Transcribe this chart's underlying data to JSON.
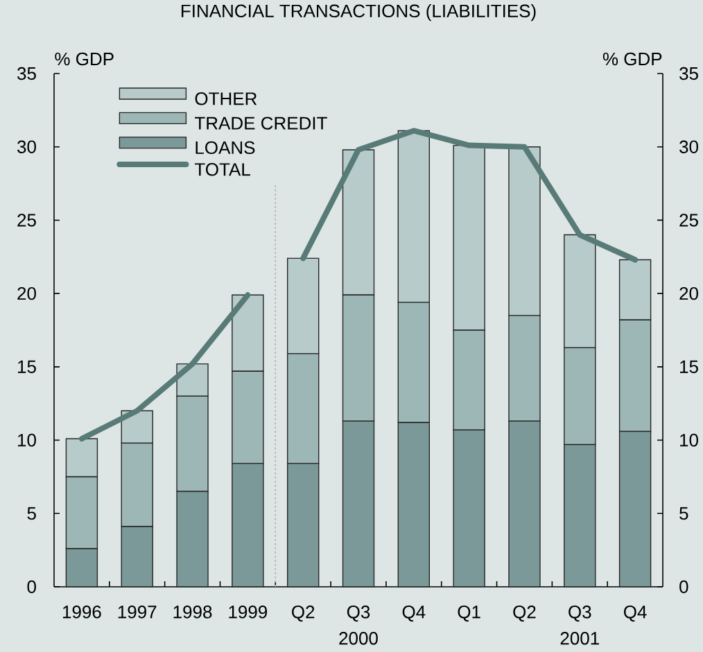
{
  "chart_data": {
    "type": "bar",
    "title": "FINANCIAL TRANSACTIONS (LIABILITIES)",
    "annotations": [
      "% GDP",
      "% GDP"
    ],
    "categories": [
      "1996",
      "1997",
      "1998",
      "1999",
      "Q2",
      "Q3 2000",
      "Q4",
      "Q1",
      "Q2",
      "Q3 2001",
      "Q4"
    ],
    "stacked": true,
    "series": [
      {
        "name": "LOANS",
        "color": "#7b9998",
        "values": [
          2.6,
          4.1,
          6.5,
          8.4,
          8.4,
          11.3,
          11.2,
          10.7,
          11.3,
          9.7,
          10.6
        ]
      },
      {
        "name": "TRADE CREDIT",
        "color": "#9db7b6",
        "values": [
          4.9,
          5.7,
          6.5,
          6.3,
          7.5,
          8.6,
          8.2,
          6.8,
          7.2,
          6.6,
          7.6
        ]
      },
      {
        "name": "OTHER",
        "color": "#b7cbca",
        "values": [
          2.6,
          2.2,
          2.2,
          5.2,
          6.5,
          9.9,
          11.7,
          12.6,
          11.5,
          7.7,
          4.1
        ]
      },
      {
        "name": "TOTAL",
        "type": "line",
        "color": "#587b78",
        "values": [
          10.1,
          12.0,
          15.2,
          19.9,
          null,
          null,
          null,
          null,
          null,
          null,
          null
        ]
      },
      {
        "type": "line",
        "color": "#587b78",
        "values": [
          null,
          null,
          null,
          null,
          22.4,
          29.8,
          31.1,
          30.1,
          30.0,
          24.0,
          22.3
        ]
      }
    ],
    "ylim": [
      0,
      35
    ],
    "yticks": [
      0,
      5,
      10,
      15,
      20,
      25,
      30,
      35
    ],
    "y2lim": [
      0,
      35
    ],
    "y2ticks": [
      0,
      5,
      10,
      15,
      20,
      25,
      30,
      35
    ],
    "legend": "top left"
  }
}
